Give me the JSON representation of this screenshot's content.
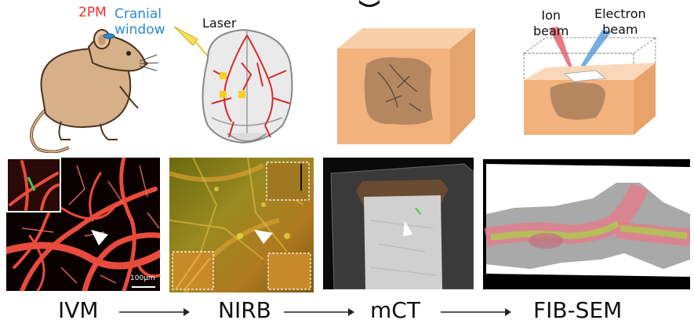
{
  "illustrations": {
    "mouse": {
      "label_2pm": "2PM",
      "label_cranial_window": "Cranial\nwindow",
      "color_2pm": "#e8312a",
      "color_window": "#2a8bd0"
    },
    "brain": {
      "label_laser": "Laser"
    },
    "fib_box": {
      "label_ion": "Ion\nbeam",
      "label_electron": "Electron\nbeam"
    }
  },
  "panels": {
    "ivm": {
      "scale_label": "100μm"
    }
  },
  "steps": [
    {
      "label": "IVM"
    },
    {
      "label": "NIRB"
    },
    {
      "label": "mCT"
    },
    {
      "label": "FIB-SEM"
    }
  ],
  "colors": {
    "vessel_red": "#e84b3c",
    "orange_block": "#f2b27e",
    "arrow": "#222222"
  }
}
